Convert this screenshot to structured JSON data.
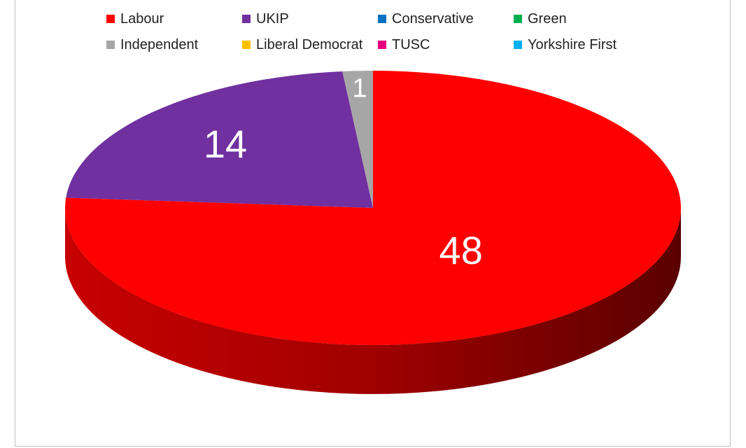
{
  "chart_data": {
    "type": "pie",
    "variant": "3d",
    "legend_position": "top",
    "start_angle_clockwise_from_top": 0,
    "slices": [
      {
        "name": "Labour",
        "value": 48,
        "label": "48",
        "color": "#ff0000"
      },
      {
        "name": "UKIP",
        "value": 14,
        "label": "14",
        "color": "#7030a0"
      },
      {
        "name": "Conservative",
        "value": 0,
        "label": "",
        "color": "#0070c0"
      },
      {
        "name": "Green",
        "value": 0,
        "label": "",
        "color": "#00b050"
      },
      {
        "name": "Independent",
        "value": 1,
        "label": "1",
        "color": "#a6a6a6"
      },
      {
        "name": "Liberal Democrat",
        "value": 0,
        "label": "",
        "color": "#ffc000"
      },
      {
        "name": "TUSC",
        "value": 0,
        "label": "",
        "color": "#e6007e"
      },
      {
        "name": "Yorkshire First",
        "value": 0,
        "label": "",
        "color": "#00b0f0"
      }
    ],
    "slice_draw_order": [
      "Labour",
      "UKIP",
      "Independent"
    ],
    "data_label_color": "#ffffff"
  }
}
